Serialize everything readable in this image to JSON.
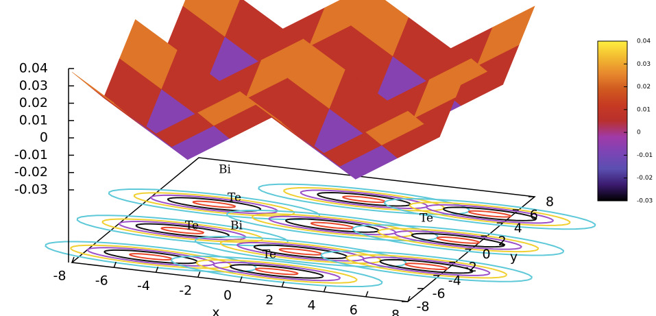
{
  "chart_data": {
    "type": "surface3d",
    "x_label": "x",
    "y_label": "y",
    "x": [
      -8,
      -6,
      -4,
      -2,
      0,
      2,
      4,
      6,
      8
    ],
    "y": [
      -8,
      -6,
      -4,
      -2,
      0,
      2,
      4,
      6,
      8
    ],
    "z": [
      [
        0.038,
        0.023,
        0.008,
        0.023,
        0.038,
        0.023,
        0.008,
        0.023,
        0.038
      ],
      [
        0.023,
        0.008,
        -0.007,
        0.008,
        0.023,
        0.008,
        -0.007,
        0.008,
        0.023
      ],
      [
        0.008,
        -0.007,
        -0.022,
        -0.007,
        0.008,
        -0.007,
        -0.022,
        -0.007,
        0.008
      ],
      [
        0.023,
        0.008,
        -0.007,
        0.008,
        0.023,
        0.008,
        -0.007,
        0.008,
        0.023
      ],
      [
        0.038,
        0.023,
        0.008,
        0.023,
        0.038,
        0.023,
        0.008,
        0.023,
        0.038
      ],
      [
        0.023,
        0.008,
        -0.007,
        0.008,
        0.023,
        0.008,
        -0.007,
        0.008,
        0.023
      ],
      [
        0.008,
        -0.007,
        -0.022,
        -0.007,
        0.008,
        -0.007,
        -0.022,
        -0.007,
        0.008
      ],
      [
        0.023,
        0.008,
        -0.007,
        0.008,
        0.023,
        0.008,
        -0.007,
        0.008,
        0.023
      ],
      [
        0.038,
        0.023,
        0.008,
        0.023,
        0.038,
        0.023,
        0.008,
        0.023,
        0.038
      ]
    ],
    "xlim": [
      -8,
      8
    ],
    "xticks": [
      -8,
      -6,
      -4,
      -2,
      0,
      2,
      4,
      6,
      8
    ],
    "ylim": [
      -8,
      8
    ],
    "yticks": [
      -8,
      -6,
      -4,
      -2,
      0,
      2,
      4,
      6,
      8
    ],
    "zlim": [
      -0.03,
      0.04
    ],
    "zticks": [
      0.04,
      0.03,
      0.02,
      0.01,
      0,
      -0.01,
      -0.02,
      -0.03
    ],
    "cblim": [
      -0.03,
      0.04
    ],
    "cbticks": [
      0.04,
      0.03,
      0.02,
      0.01,
      0,
      -0.01,
      -0.02,
      -0.03
    ],
    "palette": [
      "#000000",
      "#3a1a6e",
      "#5a4fb0",
      "#7b45b5",
      "#a03aa8",
      "#b8302e",
      "#c63a22",
      "#d05a20",
      "#e88a2e",
      "#f2bb30",
      "#ffee40"
    ],
    "annotations": [
      "Bi",
      "Te",
      "Bi",
      "Te",
      "Te",
      "Te"
    ]
  }
}
